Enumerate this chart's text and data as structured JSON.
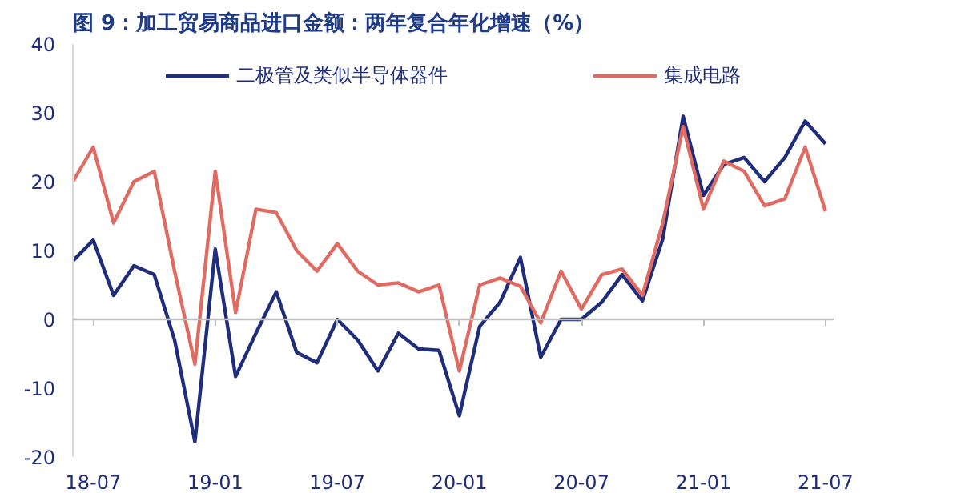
{
  "chart_data": {
    "type": "line",
    "title": "图 9：加工贸易商品进口金额：两年复合年化增速（%）",
    "categories": [
      null,
      "18-07",
      null,
      null,
      null,
      null,
      null,
      "19-01",
      null,
      null,
      null,
      null,
      null,
      "19-07",
      null,
      null,
      null,
      null,
      null,
      "20-01",
      null,
      null,
      null,
      null,
      null,
      "20-07",
      null,
      null,
      null,
      null,
      null,
      "21-01",
      null,
      null,
      null,
      null,
      null,
      "21-07"
    ],
    "series": [
      {
        "name": "二极管及类似半导体器件",
        "color": "#1f2d7b",
        "values": [
          8.5,
          11.5,
          3.5,
          7.8,
          6.5,
          -3,
          -17.8,
          10.2,
          -8.3,
          -2,
          4,
          -4.8,
          -6.3,
          0,
          -3,
          -7.5,
          -2,
          -4.3,
          -4.5,
          -14,
          -1,
          2.5,
          9,
          -5.5,
          0,
          0,
          2.5,
          6.5,
          2.7,
          11.7,
          29.5,
          18,
          22.5,
          23.5,
          20,
          23.5,
          28.8,
          25.5
        ]
      },
      {
        "name": "集成电路",
        "color": "#e06b63",
        "values": [
          20,
          25,
          14,
          20,
          21.5,
          7,
          -6.5,
          21.5,
          1,
          16,
          15.5,
          10,
          7,
          11,
          7,
          5,
          5.3,
          4,
          5,
          -7.5,
          5,
          6,
          4.8,
          -0.5,
          7,
          1.5,
          6.5,
          7.3,
          3.5,
          14,
          28,
          16,
          23,
          21.5,
          16.5,
          17.5,
          25,
          15.7
        ]
      }
    ],
    "ylim": [
      -20,
      40
    ],
    "yticks": [
      -20,
      -10,
      0,
      10,
      20,
      30,
      40
    ],
    "ref_lines": [
      {
        "axis": "y",
        "value": 0,
        "color": "#bfbfbf"
      }
    ],
    "grid": false,
    "legend": "top",
    "marker": "none",
    "line_style": "solid"
  }
}
